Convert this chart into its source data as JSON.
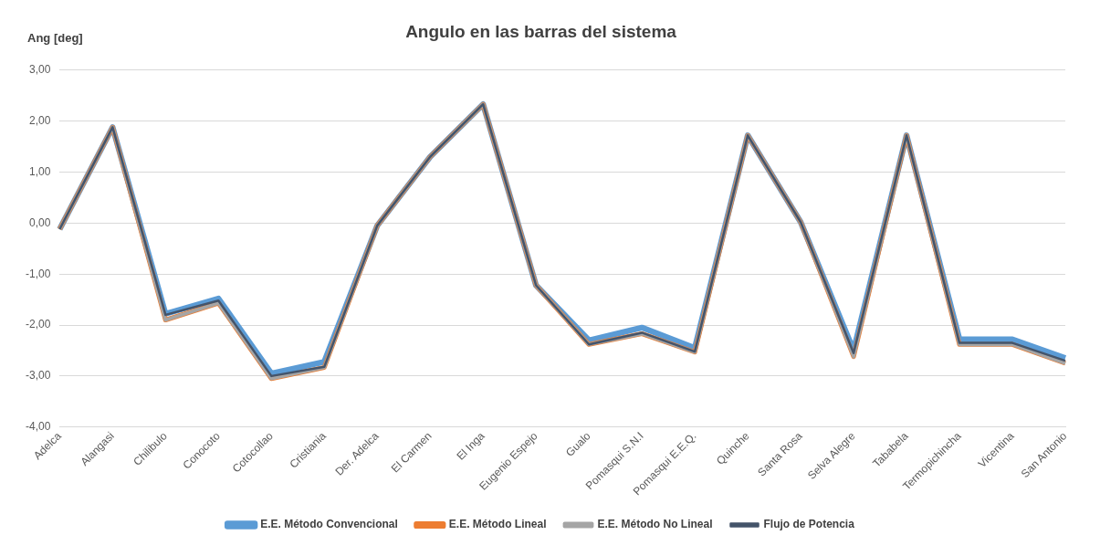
{
  "chart_data": {
    "type": "line",
    "title": "Angulo en las barras del sistema",
    "ylabel": "Ang [deg]",
    "categories": [
      "Adelca",
      "Alangasi",
      "Chilibulo",
      "Conocoto",
      "Cotocollao",
      "Cristiania",
      "Der. Adelca",
      "El Carmen",
      "El Inga",
      "Eugenio Espejo",
      "Gualo",
      "Pomasqui S.N.I",
      "Pomasqui E.E.Q.",
      "Quinche",
      "Santa Rosa",
      "Selva Alegre",
      "Tababela",
      "Termopichincha",
      "Vicentina",
      "San Antonio"
    ],
    "series": [
      {
        "name": "E.E. Método Convencional",
        "color": "#5b9bd5",
        "values": [
          -0.12,
          1.88,
          -1.78,
          -1.48,
          -2.95,
          -2.72,
          -0.05,
          1.3,
          2.33,
          -1.22,
          -2.3,
          -2.05,
          -2.45,
          1.72,
          0.02,
          -2.5,
          1.72,
          -2.28,
          -2.28,
          -2.65
        ]
      },
      {
        "name": "E.E. Método Lineal",
        "color": "#ed7d31",
        "values": [
          -0.12,
          1.88,
          -1.9,
          -1.57,
          -3.05,
          -2.83,
          -0.05,
          1.3,
          2.33,
          -1.22,
          -2.38,
          -2.17,
          -2.53,
          1.72,
          0.02,
          -2.62,
          1.72,
          -2.38,
          -2.38,
          -2.75
        ]
      },
      {
        "name": "E.E. Método No Lineal",
        "color": "#a5a5a5",
        "values": [
          -0.12,
          1.88,
          -1.9,
          -1.57,
          -3.05,
          -2.83,
          -0.05,
          1.3,
          2.33,
          -1.22,
          -2.38,
          -2.17,
          -2.53,
          1.72,
          0.02,
          -2.62,
          1.72,
          -2.38,
          -2.38,
          -2.75
        ]
      },
      {
        "name": "Flujo de Potencia",
        "color": "#44546a",
        "values": [
          -0.12,
          1.88,
          -1.8,
          -1.52,
          -3.0,
          -2.82,
          -0.05,
          1.3,
          2.33,
          -1.22,
          -2.38,
          -2.15,
          -2.52,
          1.72,
          0.02,
          -2.55,
          1.72,
          -2.35,
          -2.35,
          -2.7
        ]
      }
    ],
    "ylim": [
      -4,
      3
    ],
    "yticks": [
      {
        "value": -4,
        "label": "-4,00"
      },
      {
        "value": -3,
        "label": "-3,00"
      },
      {
        "value": -2,
        "label": "-2,00"
      },
      {
        "value": -1,
        "label": "-1,00"
      },
      {
        "value": 0,
        "label": "0,00"
      },
      {
        "value": 1,
        "label": "1,00"
      },
      {
        "value": 2,
        "label": "2,00"
      },
      {
        "value": 3,
        "label": "3,00"
      }
    ],
    "grid": "y",
    "legend": "bottom",
    "marker": "none",
    "line_style": "solid"
  }
}
